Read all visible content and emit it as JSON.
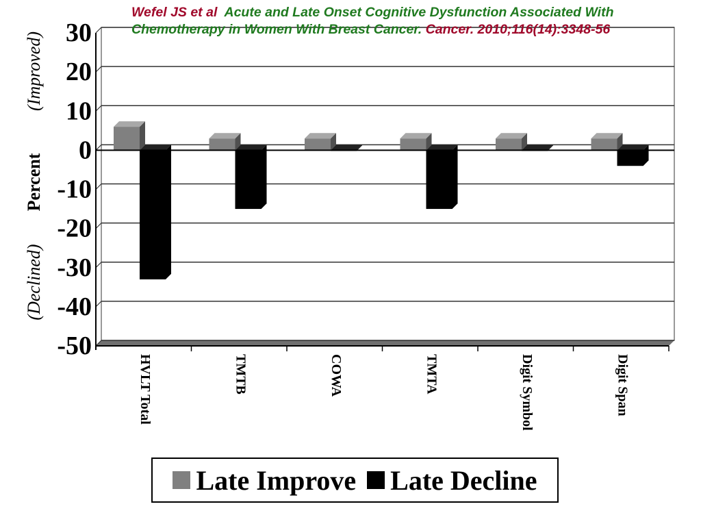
{
  "citation": {
    "part1": "Wefel JS et al",
    "part2": "Acute and Late Onset Cognitive Dysfunction Associated With",
    "part3": "Chemotherapy in Women With Breast Cancer.",
    "part4": "Cancer. 2010;116(14):3348-56"
  },
  "chart_data": {
    "type": "bar",
    "categories": [
      "HVLT Total",
      "TMTB",
      "COWA",
      "TMTA",
      "Digit Symbol",
      "Digit Span"
    ],
    "series": [
      {
        "name": "Late Improve",
        "values": [
          6,
          3,
          3,
          3,
          3,
          3
        ],
        "color": "#808080"
      },
      {
        "name": "Late Decline",
        "values": [
          -33,
          -15,
          0,
          -15,
          0,
          -4
        ],
        "color": "#000000"
      }
    ],
    "ylabel": "Percent",
    "ylabel_top": "(Improved)",
    "ylabel_bottom": "(Declined)",
    "ylim": [
      -50,
      30
    ],
    "yticks": [
      "30",
      "20",
      "10",
      "0",
      "-10",
      "-20",
      "-30",
      "-40",
      "-50"
    ],
    "grid": true,
    "legend_position": "bottom"
  }
}
